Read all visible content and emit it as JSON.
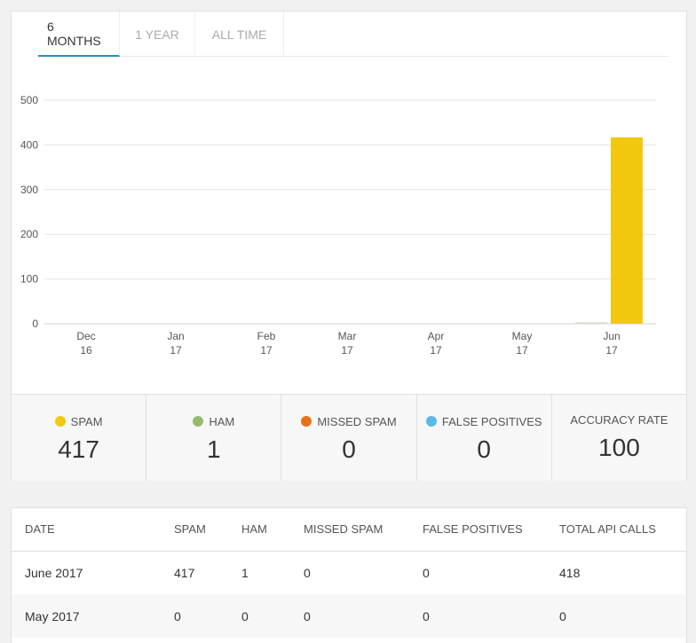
{
  "tabs": [
    {
      "label": "6 MONTHS",
      "active": true
    },
    {
      "label": "1 YEAR",
      "active": false
    },
    {
      "label": "ALL TIME",
      "active": false
    }
  ],
  "chart_data": {
    "type": "bar",
    "categories": [
      "Dec 16",
      "Jan 17",
      "Feb 17",
      "Mar 17",
      "Apr 17",
      "May 17",
      "Jun 17"
    ],
    "category_lines": [
      [
        "Dec",
        "16"
      ],
      [
        "Jan",
        "17"
      ],
      [
        "Feb",
        "17"
      ],
      [
        "Mar",
        "17"
      ],
      [
        "Apr",
        "17"
      ],
      [
        "May",
        "17"
      ],
      [
        "Jun",
        "17"
      ]
    ],
    "series": [
      {
        "color": "#f2c80f",
        "values": [
          0,
          0,
          0,
          0,
          0,
          0,
          417
        ]
      },
      {
        "color": "#95ba6f",
        "values": [
          0,
          0,
          0,
          0,
          0,
          0,
          1
        ]
      }
    ],
    "yticks": [
      "0",
      "100",
      "200",
      "300",
      "400",
      "500"
    ],
    "ylim": [
      0,
      500
    ],
    "grid": true
  },
  "stats": [
    {
      "label": "SPAM",
      "value": "417",
      "color": "#f2c80f"
    },
    {
      "label": "HAM",
      "value": "1",
      "color": "#95ba6f"
    },
    {
      "label": "MISSED SPAM",
      "value": "0",
      "color": "#e8701a"
    },
    {
      "label": "FALSE POSITIVES",
      "value": "0",
      "color": "#5bb8e8"
    },
    {
      "label": "ACCURACY RATE",
      "value": "100",
      "color": null
    }
  ],
  "table": {
    "headers": [
      "DATE",
      "SPAM",
      "HAM",
      "MISSED SPAM",
      "FALSE POSITIVES",
      "TOTAL API CALLS"
    ],
    "rows": [
      [
        "June 2017",
        "417",
        "1",
        "0",
        "0",
        "418"
      ],
      [
        "May 2017",
        "0",
        "0",
        "0",
        "0",
        "0"
      ]
    ]
  }
}
